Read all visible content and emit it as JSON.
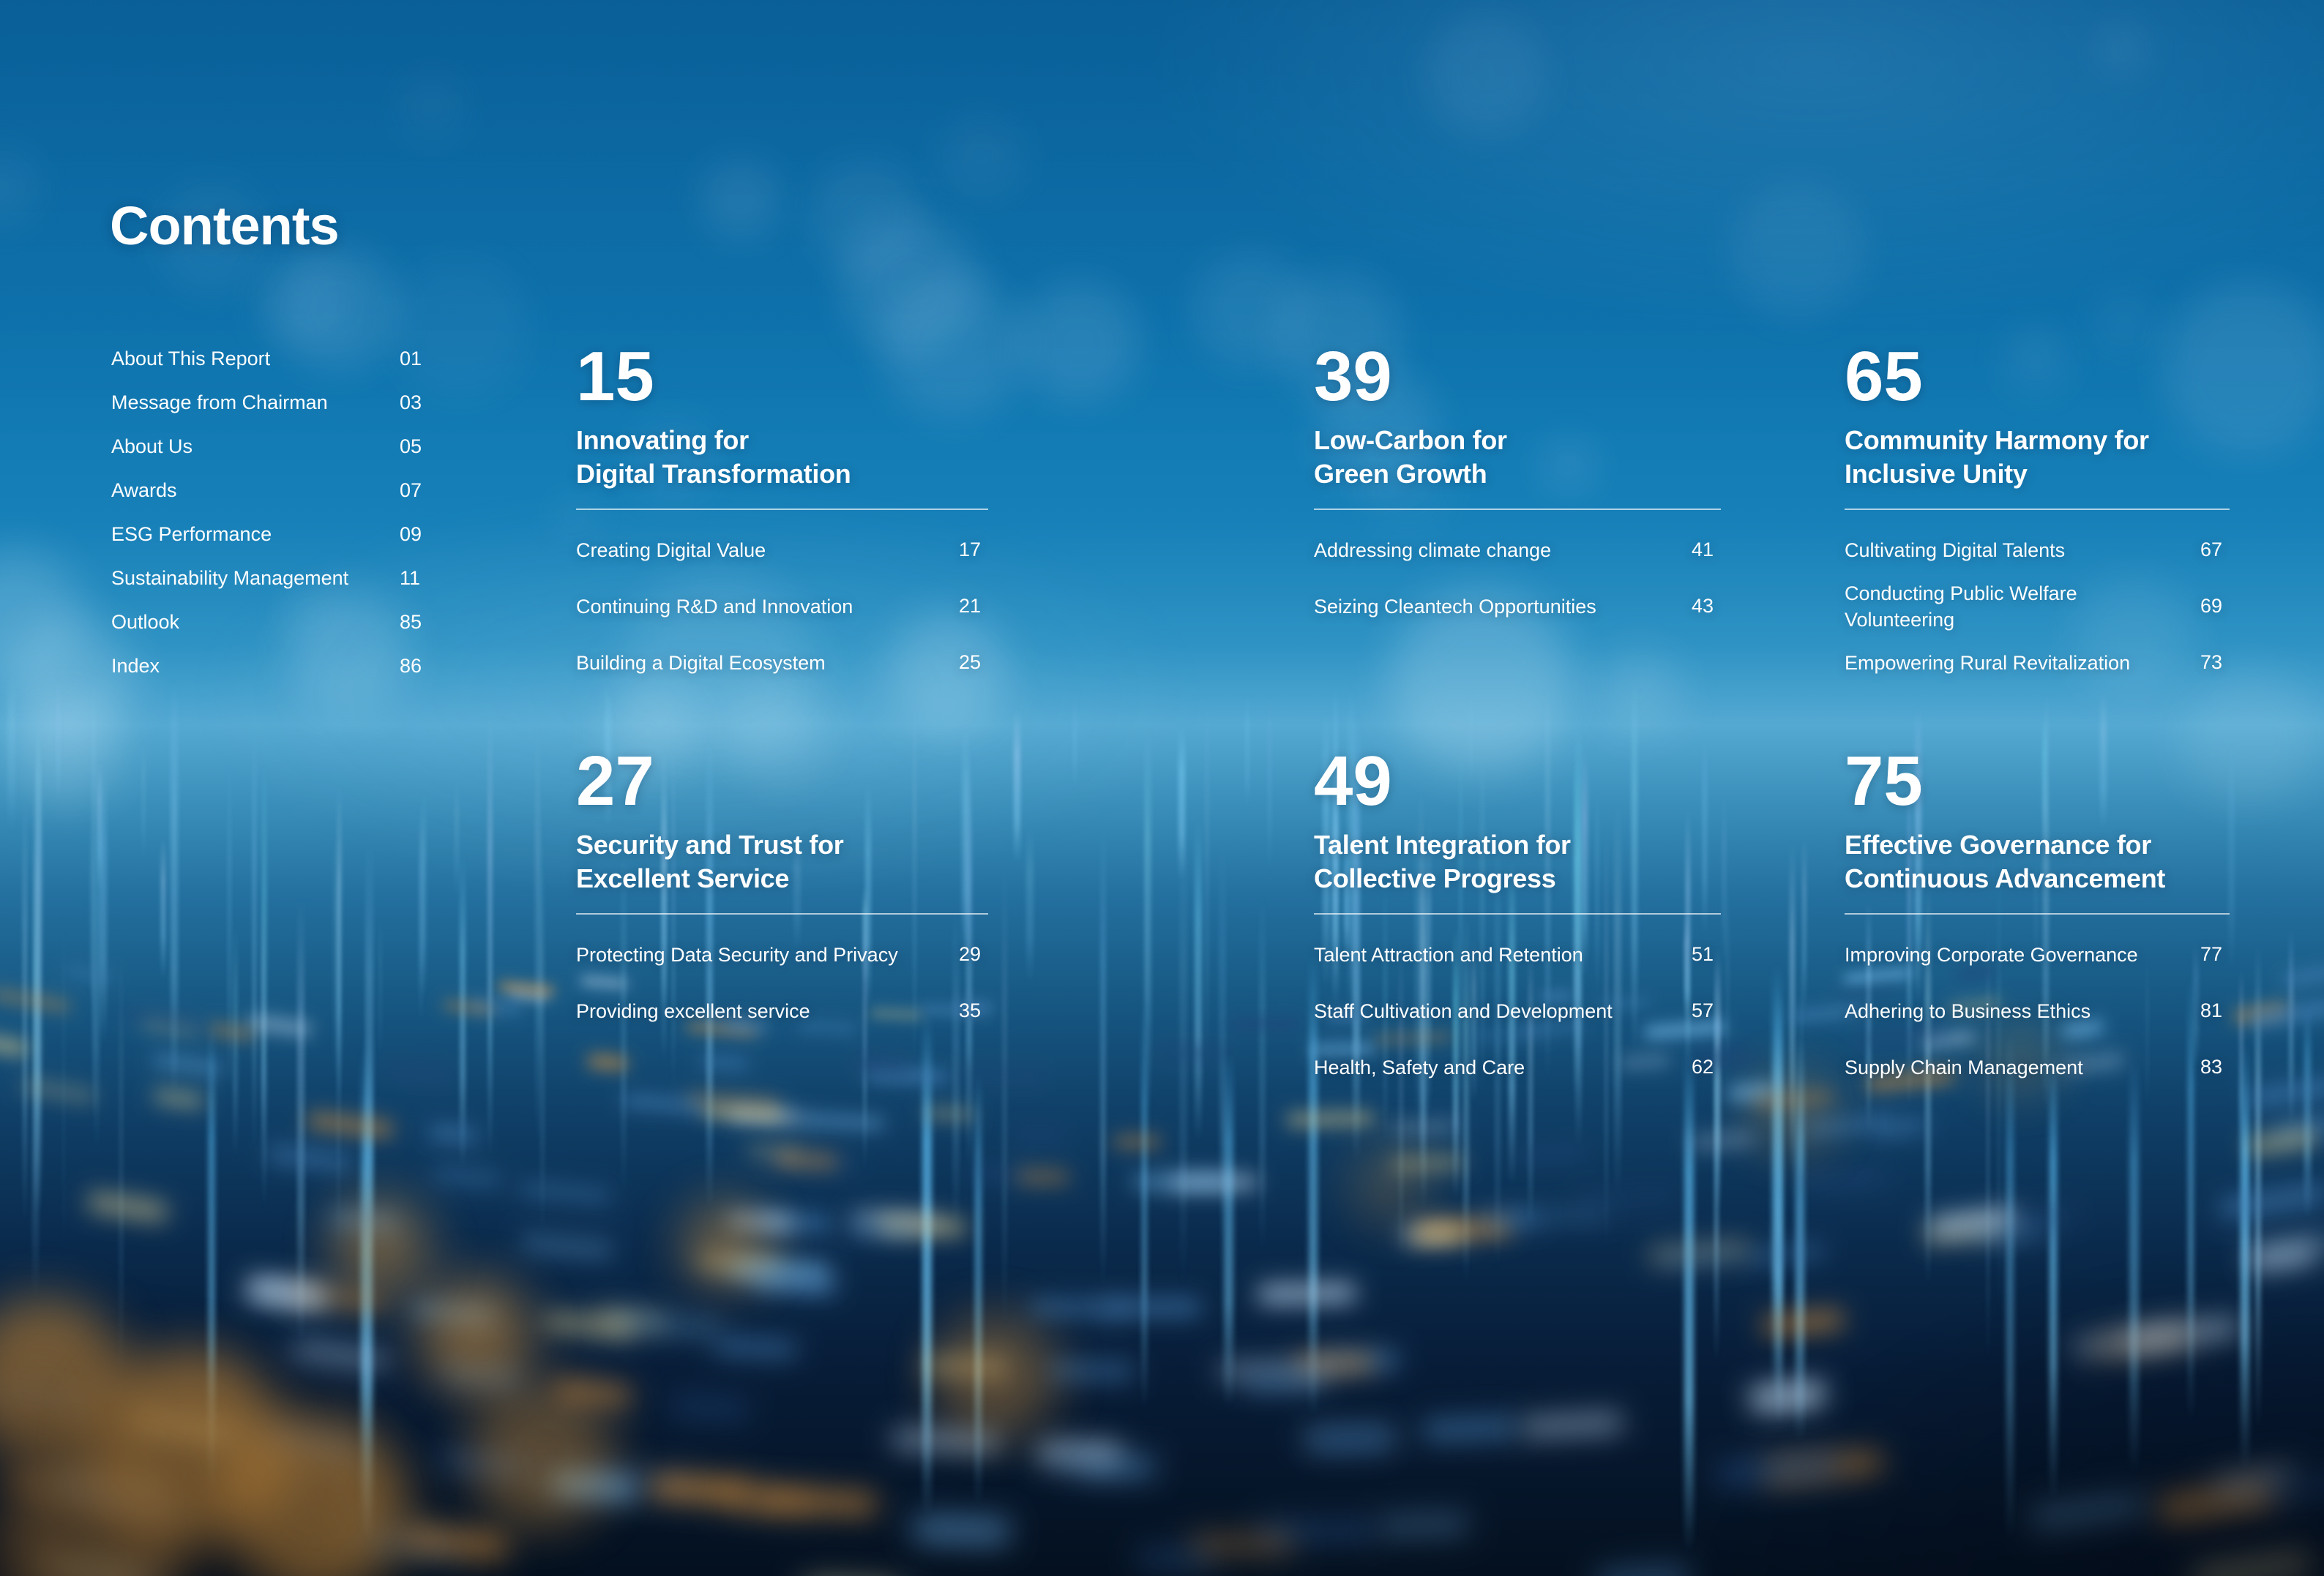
{
  "page_title": "Contents",
  "front_matter": {
    "items": [
      {
        "label": "About This Report",
        "page": "01"
      },
      {
        "label": "Message from Chairman",
        "page": "03"
      },
      {
        "label": "About Us",
        "page": "05"
      },
      {
        "label": "Awards",
        "page": "07"
      },
      {
        "label": "ESG Performance",
        "page": "09"
      },
      {
        "label": "Sustainability Management",
        "page": "11"
      },
      {
        "label": "Outlook",
        "page": "85"
      },
      {
        "label": "Index",
        "page": "86"
      }
    ]
  },
  "chapters": [
    {
      "number": "15",
      "title1": "Innovating for",
      "title2": "Digital Transformation",
      "items": [
        {
          "label": "Creating Digital Value",
          "page": "17"
        },
        {
          "label": "Continuing R&D and Innovation",
          "page": "21"
        },
        {
          "label": "Building a Digital Ecosystem",
          "page": "25"
        }
      ]
    },
    {
      "number": "27",
      "title1": "Security and Trust for",
      "title2": "Excellent Service",
      "items": [
        {
          "label": "Protecting Data Security and Privacy",
          "page": "29"
        },
        {
          "label": "Providing excellent service",
          "page": "35"
        }
      ]
    },
    {
      "number": "39",
      "title1": "Low-Carbon for",
      "title2": "Green Growth",
      "items": [
        {
          "label": "Addressing climate change",
          "page": "41"
        },
        {
          "label": "Seizing Cleantech Opportunities",
          "page": "43"
        }
      ]
    },
    {
      "number": "49",
      "title1": "Talent Integration for",
      "title2": "Collective Progress",
      "items": [
        {
          "label": "Talent Attraction and Retention",
          "page": "51"
        },
        {
          "label": "Staff Cultivation and Development",
          "page": "57"
        },
        {
          "label": "Health, Safety and Care",
          "page": "62"
        }
      ]
    },
    {
      "number": "65",
      "title1": "Community Harmony for",
      "title2": "Inclusive Unity",
      "items": [
        {
          "label": "Cultivating Digital Talents",
          "page": "67"
        },
        {
          "label": "Conducting Public Welfare Volunteering",
          "page": "69"
        },
        {
          "label": "Empowering Rural Revitalization",
          "page": "73"
        }
      ]
    },
    {
      "number": "75",
      "title1": "Effective Governance for",
      "title2": "Continuous Advancement",
      "items": [
        {
          "label": "Improving Corporate Governance",
          "page": "77"
        },
        {
          "label": "Adhering to Business Ethics",
          "page": "81"
        },
        {
          "label": "Supply Chain Management",
          "page": "83"
        }
      ]
    }
  ],
  "colors": {
    "text": "#ffffff",
    "background_top": "#0c68a4",
    "background_band": "#54a9d2",
    "background_bottom": "#04101f",
    "streak_cyan": "#7fd4f5",
    "bokeh_orange": "#e09a44",
    "bokeh_cream": "#d9c88f",
    "divider": "rgba(255,255,255,0.65)"
  }
}
